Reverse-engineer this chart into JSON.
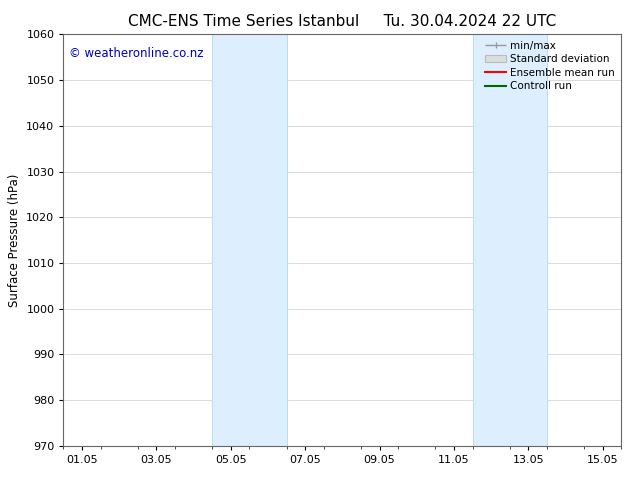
{
  "title_left": "CMC-ENS Time Series Istanbul",
  "title_right": "Tu. 30.04.2024 22 UTC",
  "ylabel": "Surface Pressure (hPa)",
  "ylim": [
    970,
    1060
  ],
  "yticks": [
    970,
    980,
    990,
    1000,
    1010,
    1020,
    1030,
    1040,
    1050,
    1060
  ],
  "xtick_labels": [
    "01.05",
    "03.05",
    "05.05",
    "07.05",
    "09.05",
    "11.05",
    "13.05",
    "15.05"
  ],
  "xtick_positions": [
    0,
    2,
    4,
    6,
    8,
    10,
    12,
    14
  ],
  "xlim": [
    -0.5,
    14.5
  ],
  "shaded_regions": [
    {
      "xmin": 3.5,
      "xmax": 5.5
    },
    {
      "xmin": 10.5,
      "xmax": 12.5
    }
  ],
  "shaded_color": "#ddeeff",
  "shaded_edge_color": "#bbddee",
  "watermark_text": "© weatheronline.co.nz",
  "watermark_color": "#0000bb",
  "watermark_fontsize": 8.5,
  "bg_color": "#ffffff",
  "grid_color": "#cccccc",
  "title_fontsize": 11,
  "axis_fontsize": 8.5,
  "tick_fontsize": 8
}
